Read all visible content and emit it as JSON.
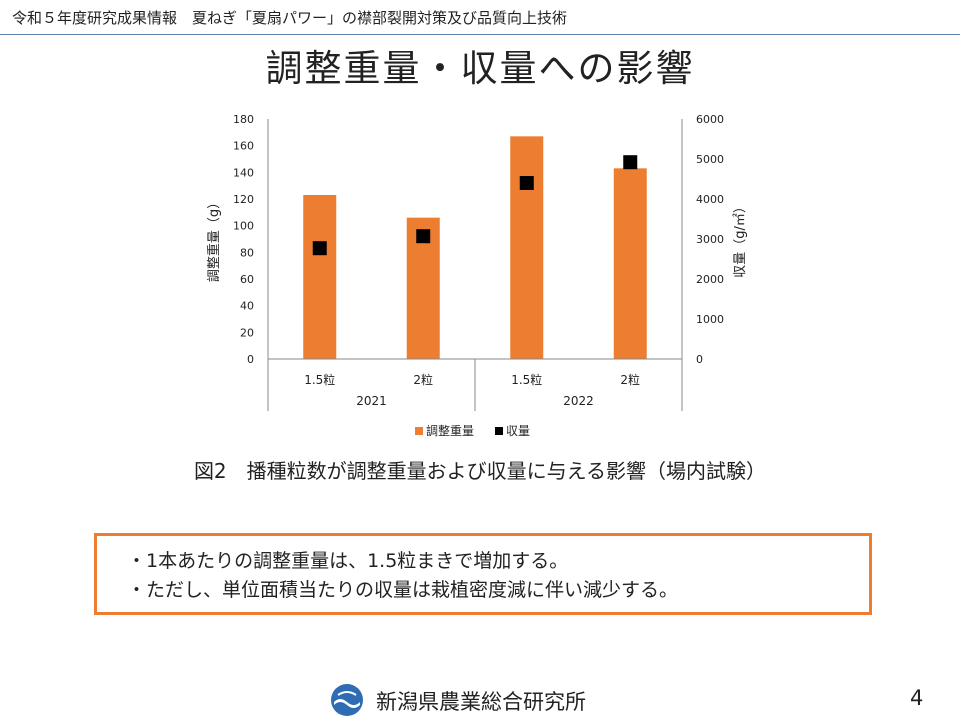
{
  "header": {
    "text": "令和５年度研究成果情報　夏ねぎ「夏扇パワー」の襟部裂開対策及び品質向上技術"
  },
  "title": "調整重量・収量への影響",
  "chart_data": {
    "type": "bar",
    "categories": [
      "1.5粒",
      "2粒",
      "1.5粒",
      "2粒"
    ],
    "groups": [
      {
        "label": "2021",
        "span": [
          0,
          1
        ]
      },
      {
        "label": "2022",
        "span": [
          2,
          3
        ]
      }
    ],
    "series": [
      {
        "name": "調整重量",
        "kind": "bar",
        "axis": "left",
        "color": "#ed7d31",
        "values": [
          123,
          106,
          167,
          143
        ]
      },
      {
        "name": "収量",
        "kind": "marker",
        "axis": "right",
        "color": "#000000",
        "values": [
          2770,
          3070,
          4400,
          4920
        ]
      }
    ],
    "ylabel": "調整重量（g）",
    "y2label": "収量（g/㎡）",
    "ylim": [
      0,
      180
    ],
    "yticks": [
      "0",
      "20",
      "40",
      "60",
      "80",
      "100",
      "120",
      "140",
      "160",
      "180"
    ],
    "y2lim": [
      0,
      6000
    ],
    "y2ticks": [
      "0",
      "1000",
      "2000",
      "3000",
      "4000",
      "5000",
      "6000"
    ],
    "grid": false,
    "legend_position": "bottom"
  },
  "caption": "図2　播種粒数が調整重量および収量に与える影響（場内試験）",
  "notes": [
    "・1本あたりの調整重量は、1.5粒まきで増加する。",
    "・ただし、単位面積当たりの収量は栽植密度減に伴い減少する。"
  ],
  "footer": {
    "org": "新潟県農業総合研究所",
    "page": "4",
    "logo_color": "#2e6db4"
  }
}
